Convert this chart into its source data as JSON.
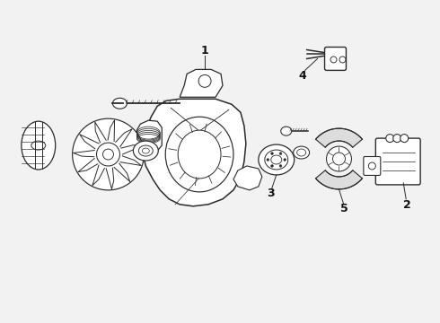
{
  "figsize": [
    4.9,
    3.6
  ],
  "dpi": 100,
  "line_color": "#2a2a2a",
  "label_color": "#111111",
  "bg_color": "#f2f2f2"
}
